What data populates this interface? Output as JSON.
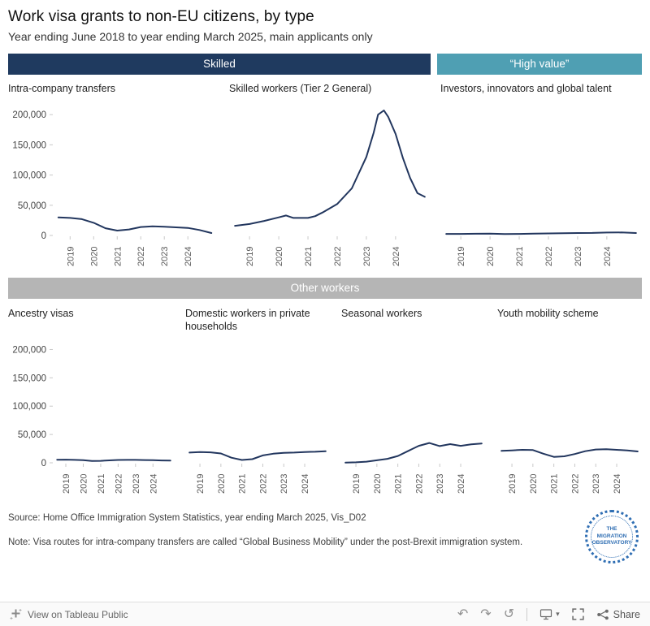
{
  "title": "Work visa grants to non-EU citizens, by type",
  "subtitle": "Year ending June 2018 to year ending March 2025, main applicants only",
  "bands": {
    "skilled": "Skilled",
    "high_value": "“High value”",
    "other": "Other workers"
  },
  "colors": {
    "navy": "#1f3a5f",
    "teal": "#4f9fb3",
    "band_gray": "#b5b5b5",
    "line": "#22365e"
  },
  "axis": {
    "ticks": [
      {
        "value": 0,
        "label": "0"
      },
      {
        "value": 50000,
        "label": "50,000"
      },
      {
        "value": 100000,
        "label": "100,000"
      },
      {
        "value": 150000,
        "label": "150,000"
      },
      {
        "value": 200000,
        "label": "200,000"
      }
    ],
    "ylim": [
      0,
      215000
    ]
  },
  "chart_data": [
    {
      "type": "line",
      "title": "Intra-company transfers",
      "ylim": [
        0,
        215000
      ],
      "ticks": [
        2018,
        2019,
        2020,
        2021,
        2022,
        2023,
        2024
      ],
      "x": [
        2018.5,
        2019,
        2019.5,
        2020,
        2020.5,
        2021,
        2021.5,
        2022,
        2022.5,
        2023,
        2023.5,
        2024,
        2024.5,
        2025
      ],
      "values": [
        30000,
        29000,
        27000,
        21000,
        12000,
        8000,
        10000,
        14000,
        15000,
        14500,
        13500,
        12500,
        9000,
        4000
      ]
    },
    {
      "type": "line",
      "title": "Skilled workers (Tier 2 General)",
      "ylim": [
        0,
        215000
      ],
      "ticks": [
        2018,
        2019,
        2020,
        2021,
        2022,
        2023,
        2024
      ],
      "x": [
        2018.5,
        2019,
        2019.5,
        2020,
        2020.25,
        2020.5,
        2021,
        2021.25,
        2021.5,
        2022,
        2022.5,
        2023,
        2023.25,
        2023.4,
        2023.6,
        2023.75,
        2024,
        2024.25,
        2024.5,
        2024.75,
        2025
      ],
      "values": [
        16000,
        19000,
        24000,
        30000,
        33000,
        29000,
        29000,
        32000,
        38000,
        52000,
        78000,
        130000,
        170000,
        200000,
        207000,
        196000,
        168000,
        128000,
        95000,
        70000,
        64000
      ]
    },
    {
      "type": "line",
      "title": "Investors, innovators and global talent",
      "ylim": [
        0,
        215000
      ],
      "ticks": [
        2018,
        2019,
        2020,
        2021,
        2022,
        2023,
        2024
      ],
      "x": [
        2018.5,
        2019,
        2019.5,
        2020,
        2020.5,
        2021,
        2021.5,
        2022,
        2022.5,
        2023,
        2023.5,
        2024,
        2024.5,
        2025
      ],
      "values": [
        2500,
        2600,
        2800,
        3000,
        2400,
        2500,
        3000,
        3400,
        3800,
        4000,
        4200,
        4800,
        5000,
        4000
      ]
    },
    {
      "type": "line",
      "title": "Ancestry visas",
      "ylim": [
        0,
        215000
      ],
      "ticks": [
        2019,
        2020,
        2021,
        2022,
        2023,
        2024
      ],
      "x": [
        2018.5,
        2019,
        2019.5,
        2020,
        2020.5,
        2021,
        2021.5,
        2022,
        2022.5,
        2023,
        2023.5,
        2024,
        2024.5,
        2025
      ],
      "values": [
        5500,
        5600,
        5200,
        4800,
        3200,
        3500,
        4300,
        5000,
        5200,
        5100,
        4900,
        4600,
        4200,
        3800
      ]
    },
    {
      "type": "line",
      "title": "Domestic workers in private households",
      "ylim": [
        0,
        215000
      ],
      "ticks": [
        2018,
        2019,
        2020,
        2021,
        2022,
        2023,
        2024
      ],
      "x": [
        2018.5,
        2019,
        2019.5,
        2020,
        2020.5,
        2021,
        2021.5,
        2022,
        2022.5,
        2023,
        2023.5,
        2024,
        2024.5,
        2025
      ],
      "values": [
        18000,
        19000,
        18500,
        16500,
        9000,
        5000,
        6500,
        13000,
        16000,
        17500,
        18000,
        19000,
        19500,
        20500
      ]
    },
    {
      "type": "line",
      "title": "Seasonal workers",
      "ylim": [
        0,
        215000
      ],
      "ticks": [
        2018,
        2019,
        2020,
        2021,
        2022,
        2023,
        2024
      ],
      "x": [
        2018.5,
        2019,
        2019.5,
        2020,
        2020.5,
        2021,
        2021.5,
        2022,
        2022.5,
        2023,
        2023.5,
        2024,
        2024.5,
        2025
      ],
      "values": [
        300,
        800,
        2000,
        4500,
        7000,
        12000,
        21000,
        30000,
        35000,
        29500,
        33000,
        30000,
        32500,
        34000
      ]
    },
    {
      "type": "line",
      "title": "Youth mobility scheme",
      "ylim": [
        0,
        215000
      ],
      "ticks": [
        2018,
        2019,
        2020,
        2021,
        2022,
        2023,
        2024
      ],
      "x": [
        2018.5,
        2019,
        2019.5,
        2020,
        2020.5,
        2021,
        2021.5,
        2022,
        2022.5,
        2023,
        2023.5,
        2024,
        2024.5,
        2025
      ],
      "values": [
        21000,
        22000,
        23000,
        22500,
        16000,
        10500,
        11500,
        15500,
        20500,
        23500,
        24000,
        23000,
        22000,
        20000
      ]
    }
  ],
  "footer": {
    "source": "Source: Home Office Immigration System Statistics, year ending March 2025, Vis_D02",
    "note": "Note: Visa routes for intra-company transfers are called “Global Business Mobility” under the post-Brexit immigration system."
  },
  "logo": {
    "label": "THE MIGRATION OBSERVATORY"
  },
  "toolbar": {
    "view_label": "View on Tableau Public",
    "share_label": "Share"
  },
  "icons": {
    "undo": "↶",
    "redo": "↷",
    "replay": "↺",
    "caret": "▾"
  }
}
